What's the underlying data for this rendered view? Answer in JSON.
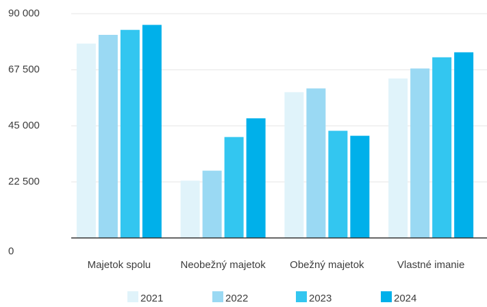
{
  "chart_data": {
    "type": "bar",
    "categories": [
      "Majetok spolu",
      "Neobežný majetok",
      "Obežný majetok",
      "Vlastné imanie"
    ],
    "series": [
      {
        "name": "2021",
        "color": "#e0f3fa",
        "values": [
          78000,
          23000,
          58500,
          64000
        ]
      },
      {
        "name": "2022",
        "color": "#9ad9f3",
        "values": [
          81500,
          27000,
          60000,
          68000
        ]
      },
      {
        "name": "2023",
        "color": "#33c6f0",
        "values": [
          83500,
          40500,
          43000,
          72500
        ]
      },
      {
        "name": "2024",
        "color": "#00b0ea",
        "values": [
          85500,
          48000,
          41000,
          74500
        ]
      }
    ],
    "yticks": [
      0,
      22500,
      45000,
      67500,
      90000
    ],
    "ytick_labels": [
      "0",
      "22 500",
      "45 000",
      "67 500",
      "90 000"
    ],
    "ylim": [
      0,
      90000
    ],
    "grid": true,
    "legend_position": "bottom",
    "title": "",
    "xlabel": "",
    "ylabel": ""
  }
}
